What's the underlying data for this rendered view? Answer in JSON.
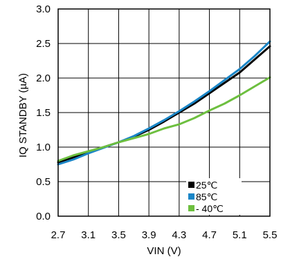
{
  "chart_data": {
    "type": "line",
    "title": "",
    "xlabel": "VIN (V)",
    "ylabel": "IQ STANDBY (µA)",
    "xlim": [
      2.7,
      5.5
    ],
    "ylim": [
      0.0,
      3.0
    ],
    "x_ticks": [
      "2.7",
      "3.1",
      "3.5",
      "3.9",
      "4.3",
      "4.7",
      "5.1",
      "5.5"
    ],
    "y_ticks": [
      "0.0",
      "0.5",
      "1.0",
      "1.5",
      "2.0",
      "2.5",
      "3.0"
    ],
    "grid": true,
    "legend_position": "bottom-right",
    "series": [
      {
        "name": "25℃",
        "color": "#000000",
        "x": [
          2.7,
          2.9,
          3.1,
          3.3,
          3.5,
          3.7,
          3.9,
          4.1,
          4.3,
          4.5,
          4.7,
          4.9,
          5.1,
          5.3,
          5.5
        ],
        "y": [
          0.78,
          0.85,
          0.92,
          1.0,
          1.07,
          1.15,
          1.25,
          1.37,
          1.5,
          1.63,
          1.78,
          1.93,
          2.08,
          2.27,
          2.46
        ]
      },
      {
        "name": "85℃",
        "color": "#1a86c7",
        "x": [
          2.7,
          2.9,
          3.1,
          3.3,
          3.5,
          3.7,
          3.9,
          4.1,
          4.3,
          4.5,
          4.7,
          4.9,
          5.1,
          5.3,
          5.5
        ],
        "y": [
          0.75,
          0.82,
          0.91,
          0.99,
          1.07,
          1.16,
          1.27,
          1.39,
          1.52,
          1.66,
          1.81,
          1.97,
          2.13,
          2.32,
          2.53
        ]
      },
      {
        "name": "- 40℃",
        "color": "#6dbf3f",
        "x": [
          2.7,
          2.9,
          3.1,
          3.3,
          3.5,
          3.7,
          3.9,
          4.1,
          4.3,
          4.5,
          4.7,
          4.9,
          5.1,
          5.3,
          5.5
        ],
        "y": [
          0.8,
          0.88,
          0.94,
          1.0,
          1.07,
          1.13,
          1.19,
          1.27,
          1.33,
          1.42,
          1.53,
          1.63,
          1.75,
          1.88,
          2.01
        ]
      }
    ]
  }
}
